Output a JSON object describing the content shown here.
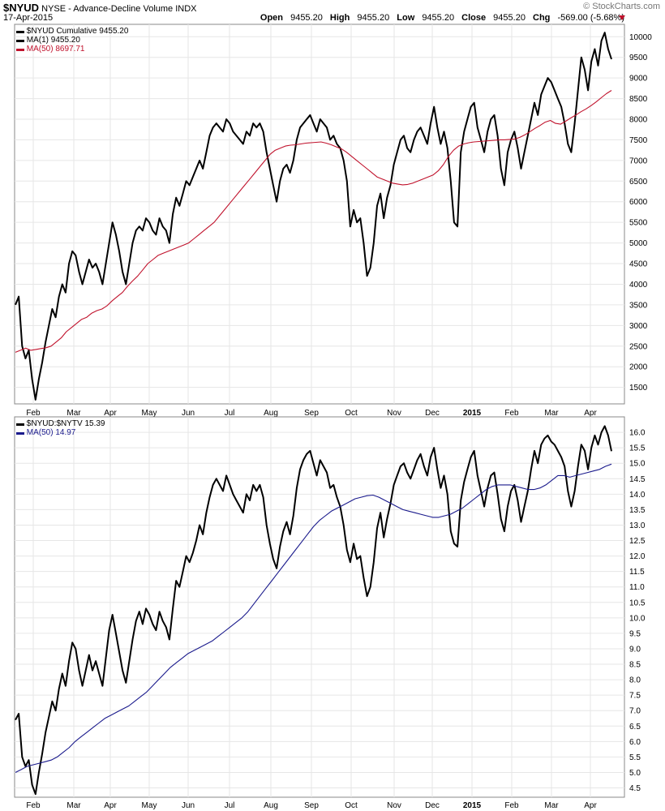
{
  "header": {
    "symbol": "$NYUD",
    "name": "NYSE - Advance-Decline Volume",
    "type": "INDX",
    "date": "17-Apr-2015",
    "open_label": "Open",
    "open": "9455.20",
    "high_label": "High",
    "high": "9455.20",
    "low_label": "Low",
    "low": "9455.20",
    "close_label": "Close",
    "close": "9455.20",
    "chg_label": "Chg",
    "chg": "-569.00 (-5.68%)",
    "watermark": "© StockCharts.com"
  },
  "colors": {
    "price": "#000000",
    "ma_red": "#c0122c",
    "ma_blue": "#1a1a8c",
    "grid": "#e6e6e6",
    "down": "#c0122c"
  },
  "panel1_legend": [
    "$NYUD Cumulative 9455.20",
    "MA(1) 9455.20",
    "MA(50) 8697.71"
  ],
  "panel2_legend": [
    "$NYUD:$NYTV 15.39",
    "MA(50) 14.97"
  ],
  "chart_data": [
    {
      "type": "line",
      "x_ticks": [
        "Feb",
        "Mar",
        "Apr",
        "May",
        "Jun",
        "Jul",
        "Aug",
        "Sep",
        "Oct",
        "Nov",
        "Dec",
        "2015",
        "Feb",
        "Mar",
        "Apr"
      ],
      "y_ticks": [
        "1500",
        "2000",
        "2500",
        "3000",
        "3500",
        "4000",
        "4500",
        "5000",
        "5500",
        "6000",
        "6500",
        "7000",
        "7500",
        "8000",
        "8500",
        "9000",
        "9500",
        "10000"
      ],
      "ylim": [
        1100,
        10300
      ],
      "series": [
        {
          "name": "$NYUD Cumulative",
          "values": [
            3500,
            3700,
            2500,
            2200,
            2400,
            1700,
            1200,
            1700,
            2100,
            2600,
            3000,
            3400,
            3200,
            3700,
            4000,
            3800,
            4500,
            4800,
            4700,
            4300,
            4000,
            4300,
            4600,
            4400,
            4500,
            4300,
            4000,
            4500,
            5000,
            5500,
            5200,
            4800,
            4300,
            4000,
            4500,
            5000,
            5300,
            5400,
            5300,
            5600,
            5500,
            5300,
            5200,
            5600,
            5400,
            5300,
            5000,
            5700,
            6100,
            5900,
            6200,
            6500,
            6400,
            6600,
            6800,
            7000,
            6800,
            7200,
            7600,
            7800,
            7900,
            7800,
            7700,
            8000,
            7900,
            7700,
            7600,
            7500,
            7400,
            7700,
            7600,
            7900,
            7800,
            7900,
            7700,
            7200,
            6800,
            6400,
            6000,
            6500,
            6800,
            6900,
            6700,
            7000,
            7500,
            7800,
            7900,
            8000,
            8100,
            7900,
            7700,
            8000,
            7900,
            7800,
            7500,
            7600,
            7400,
            7300,
            7000,
            6500,
            5400,
            5800,
            5500,
            5600,
            5000,
            4200,
            4400,
            5000,
            5900,
            6200,
            5600,
            6100,
            6400,
            6900,
            7200,
            7500,
            7600,
            7300,
            7200,
            7500,
            7700,
            7800,
            7600,
            7400,
            7900,
            8300,
            7800,
            7400,
            7700,
            7300,
            6500,
            5500,
            5400,
            7200,
            7700,
            8000,
            8300,
            8400,
            7800,
            7500,
            7200,
            7700,
            8000,
            8100,
            7600,
            6800,
            6400,
            7200,
            7500,
            7700,
            7300,
            6800,
            7200,
            7600,
            8000,
            8400,
            8100,
            8600,
            8800,
            9000,
            8900,
            8700,
            8500,
            8300,
            7900,
            7400,
            7200,
            7900,
            8700,
            9500,
            9200,
            8700,
            9400,
            9700,
            9300,
            9900,
            10100,
            9700,
            9455
          ]
        },
        {
          "name": "MA(50)",
          "values": [
            2350,
            2400,
            2450,
            2400,
            2420,
            2440,
            2460,
            2500,
            2600,
            2700,
            2850,
            2950,
            3050,
            3150,
            3200,
            3300,
            3360,
            3400,
            3480,
            3600,
            3700,
            3800,
            3950,
            4080,
            4200,
            4350,
            4500,
            4600,
            4700,
            4750,
            4800,
            4850,
            4900,
            4950,
            5000,
            5100,
            5200,
            5300,
            5400,
            5500,
            5650,
            5800,
            5950,
            6100,
            6250,
            6400,
            6550,
            6700,
            6850,
            7000,
            7150,
            7250,
            7300,
            7350,
            7370,
            7380,
            7400,
            7420,
            7430,
            7440,
            7450,
            7420,
            7380,
            7330,
            7280,
            7200,
            7100,
            7000,
            6900,
            6800,
            6700,
            6600,
            6550,
            6500,
            6450,
            6430,
            6410,
            6420,
            6450,
            6500,
            6550,
            6600,
            6650,
            6750,
            6900,
            7100,
            7250,
            7350,
            7400,
            7430,
            7450,
            7460,
            7470,
            7480,
            7490,
            7500,
            7500,
            7510,
            7520,
            7560,
            7620,
            7700,
            7780,
            7850,
            7930,
            7970,
            7900,
            7880,
            7950,
            8030,
            8100,
            8180,
            8250,
            8330,
            8420,
            8520,
            8620,
            8698
          ]
        }
      ]
    },
    {
      "type": "line",
      "x_ticks": [
        "Feb",
        "Mar",
        "Apr",
        "May",
        "Jun",
        "Jul",
        "Aug",
        "Sep",
        "Oct",
        "Nov",
        "Dec",
        "2015",
        "Feb",
        "Mar",
        "Apr"
      ],
      "y_ticks": [
        "4.5",
        "5.0",
        "5.5",
        "6.0",
        "6.5",
        "7.0",
        "7.5",
        "8.0",
        "8.5",
        "9.0",
        "9.5",
        "10.0",
        "10.5",
        "11.0",
        "11.5",
        "12.0",
        "12.5",
        "13.0",
        "13.5",
        "14.0",
        "14.5",
        "15.0",
        "15.5",
        "16.0"
      ],
      "ylim": [
        4.2,
        16.5
      ],
      "series": [
        {
          "name": "$NYUD:$NYTV",
          "values": [
            6.7,
            6.9,
            5.5,
            5.2,
            5.4,
            4.6,
            4.3,
            5.0,
            5.6,
            6.3,
            6.8,
            7.3,
            7.0,
            7.7,
            8.2,
            7.8,
            8.6,
            9.2,
            9.0,
            8.3,
            7.8,
            8.3,
            8.8,
            8.3,
            8.6,
            8.2,
            7.8,
            8.7,
            9.6,
            10.1,
            9.5,
            8.9,
            8.3,
            7.9,
            8.6,
            9.3,
            9.9,
            10.2,
            9.8,
            10.3,
            10.1,
            9.8,
            9.6,
            10.2,
            9.9,
            9.7,
            9.3,
            10.3,
            11.2,
            11.0,
            11.5,
            12.0,
            11.8,
            12.1,
            12.5,
            13.0,
            12.7,
            13.4,
            13.9,
            14.3,
            14.5,
            14.3,
            14.1,
            14.6,
            14.3,
            14.0,
            13.8,
            13.6,
            13.4,
            14.0,
            13.8,
            14.3,
            14.1,
            14.3,
            13.9,
            13.0,
            12.4,
            11.9,
            11.6,
            12.3,
            12.8,
            13.1,
            12.7,
            13.3,
            14.2,
            14.8,
            15.1,
            15.3,
            15.4,
            15.0,
            14.6,
            15.1,
            14.9,
            14.7,
            14.2,
            14.3,
            13.9,
            13.6,
            13.0,
            12.2,
            11.8,
            12.4,
            11.9,
            12.0,
            11.3,
            10.7,
            11.0,
            11.8,
            12.9,
            13.4,
            12.6,
            13.2,
            13.7,
            14.3,
            14.6,
            14.9,
            15.0,
            14.7,
            14.5,
            14.8,
            15.1,
            15.3,
            14.9,
            14.6,
            15.2,
            15.5,
            14.8,
            14.2,
            14.6,
            14.0,
            12.8,
            12.4,
            12.3,
            13.8,
            14.4,
            14.8,
            15.2,
            15.4,
            14.6,
            14.1,
            13.6,
            14.2,
            14.6,
            14.7,
            14.0,
            13.2,
            12.8,
            13.6,
            14.1,
            14.3,
            13.8,
            13.1,
            13.6,
            14.1,
            14.8,
            15.4,
            15.0,
            15.6,
            15.8,
            15.9,
            15.7,
            15.6,
            15.4,
            15.2,
            14.9,
            14.1,
            13.6,
            14.1,
            14.9,
            15.6,
            15.4,
            14.8,
            15.5,
            15.9,
            15.6,
            16.0,
            16.2,
            15.9,
            15.39
          ]
        },
        {
          "name": "MA(50)",
          "values": [
            5.0,
            5.1,
            5.2,
            5.25,
            5.3,
            5.35,
            5.4,
            5.5,
            5.65,
            5.8,
            6.0,
            6.15,
            6.3,
            6.45,
            6.6,
            6.75,
            6.85,
            6.95,
            7.05,
            7.15,
            7.3,
            7.45,
            7.6,
            7.8,
            8.0,
            8.2,
            8.4,
            8.55,
            8.7,
            8.85,
            8.95,
            9.05,
            9.15,
            9.25,
            9.4,
            9.55,
            9.7,
            9.85,
            10.0,
            10.2,
            10.45,
            10.7,
            10.95,
            11.2,
            11.45,
            11.7,
            11.95,
            12.2,
            12.45,
            12.7,
            12.95,
            13.15,
            13.3,
            13.45,
            13.55,
            13.65,
            13.75,
            13.85,
            13.9,
            13.95,
            13.97,
            13.9,
            13.8,
            13.7,
            13.6,
            13.5,
            13.45,
            13.4,
            13.35,
            13.3,
            13.25,
            13.25,
            13.3,
            13.35,
            13.45,
            13.55,
            13.7,
            13.85,
            14.0,
            14.15,
            14.25,
            14.3,
            14.3,
            14.3,
            14.25,
            14.2,
            14.15,
            14.15,
            14.2,
            14.3,
            14.45,
            14.6,
            14.6,
            14.55,
            14.6,
            14.65,
            14.7,
            14.75,
            14.8,
            14.9,
            14.97
          ]
        }
      ]
    }
  ]
}
